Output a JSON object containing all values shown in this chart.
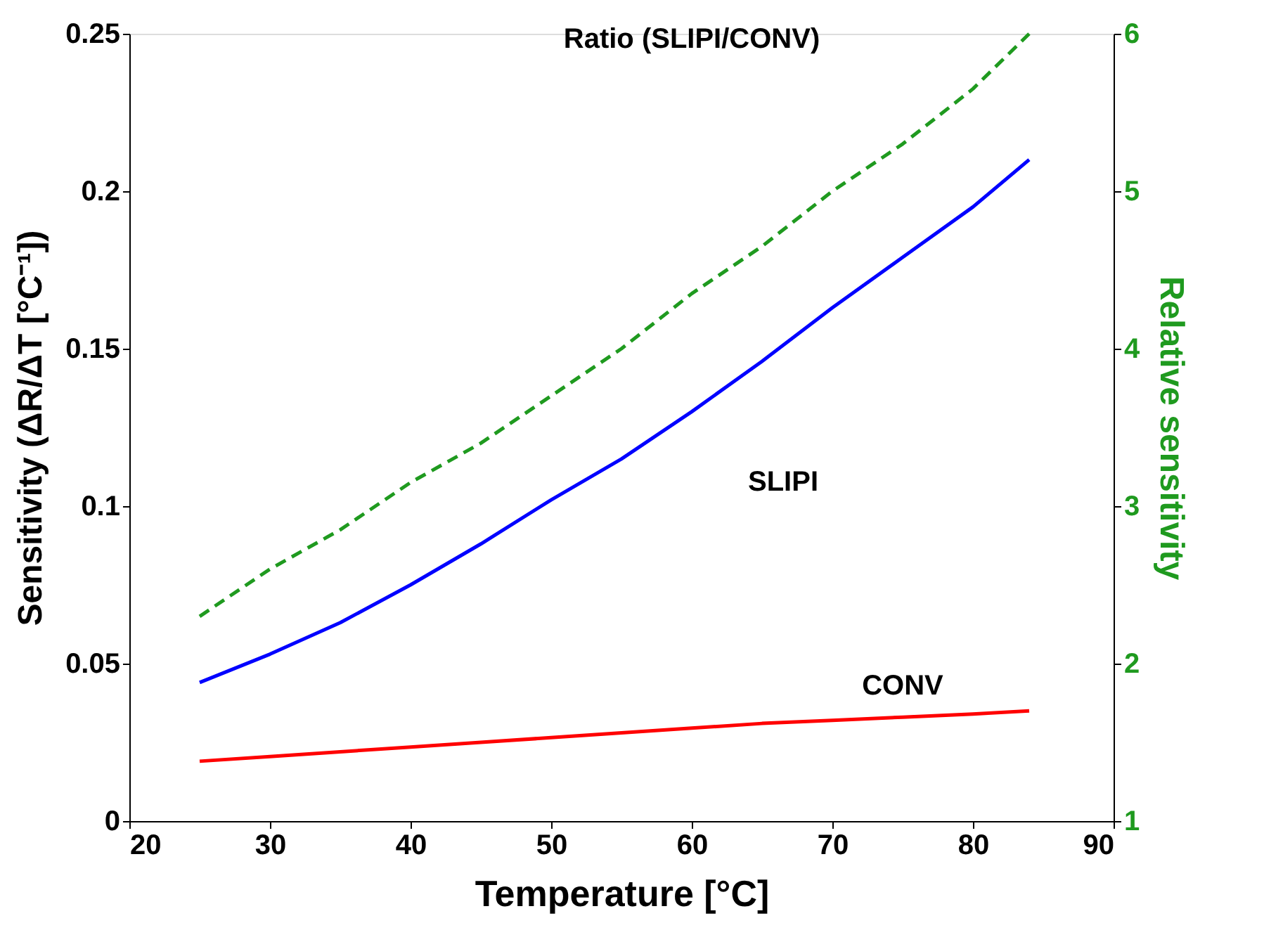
{
  "chart_data": {
    "type": "line",
    "xlabel": "Temperature [°C]",
    "ylabel": "Sensitivity (ΔR/ΔT [°C⁻¹])",
    "y2label": "Relative sensitivity",
    "x": [
      25,
      30,
      35,
      40,
      45,
      50,
      55,
      60,
      65,
      70,
      75,
      80,
      84
    ],
    "series": [
      {
        "color": "#0000ff",
        "values": [
          0.044,
          0.053,
          0.063,
          0.075,
          0.088,
          0.102,
          0.115,
          0.13,
          0.146,
          0.163,
          0.179,
          0.195,
          0.21
        ]
      },
      {
        "color": "#ff0000",
        "values": [
          0.019,
          0.0205,
          0.022,
          0.0235,
          0.025,
          0.0265,
          0.028,
          0.0295,
          0.031,
          0.032,
          0.033,
          0.034,
          0.035
        ]
      },
      {
        "color": "#1f9a1f",
        "values": [
          2.3,
          2.6,
          2.85,
          3.15,
          3.4,
          3.7,
          4.0,
          4.35,
          4.65,
          5.0,
          5.3,
          5.65,
          6.0
        ],
        "axis": "y2",
        "line_style": "dashed"
      }
    ],
    "annotations": [
      "SLIPI",
      "CONV",
      "Ratio (SLIPI/CONV)"
    ],
    "xlim": [
      20,
      90
    ],
    "xticks": [
      20,
      30,
      40,
      50,
      60,
      70,
      80,
      90
    ],
    "ylim": [
      0,
      0.25
    ],
    "yticks": [
      0,
      0.05,
      0.1,
      0.15,
      0.2,
      0.25
    ],
    "y2lim": [
      1,
      6
    ],
    "y2ticks": [
      1,
      2,
      3,
      4,
      5,
      6
    ],
    "grid": false
  }
}
